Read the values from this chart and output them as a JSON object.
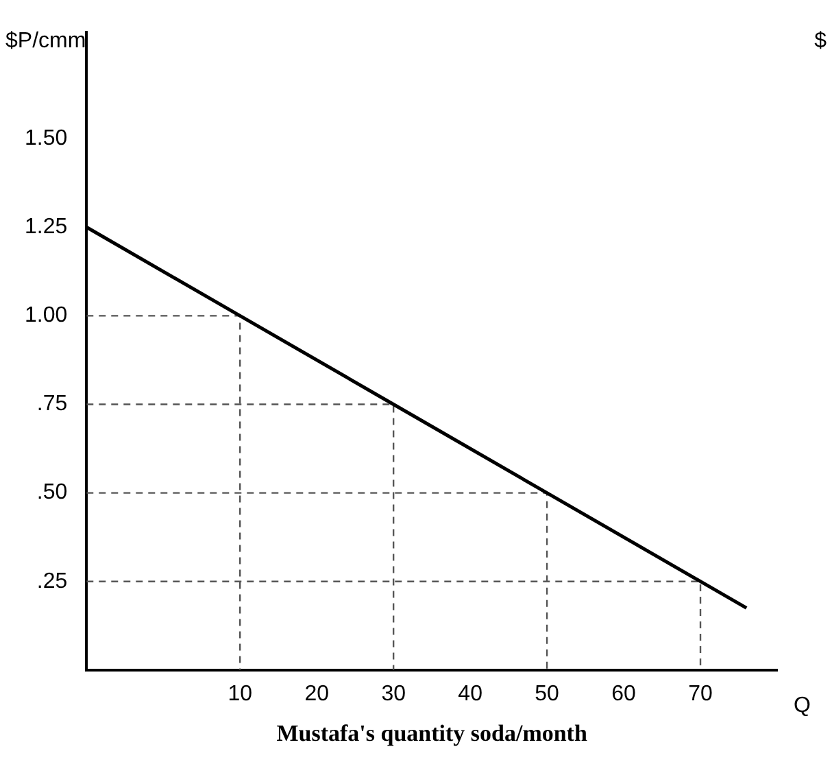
{
  "chart_data": {
    "type": "line",
    "xlabel": "Mustafa's quantity soda/month",
    "ylabel": "$P/cmm",
    "annotations": [
      "Q",
      "$"
    ],
    "xlim": [
      -10,
      80
    ],
    "xticks": [
      10,
      20,
      30,
      40,
      50,
      60,
      70
    ],
    "ylim": [
      0,
      1.8
    ],
    "yticks": [
      {
        "value": 0.25,
        "label": ".25"
      },
      {
        "value": 0.5,
        "label": ".50"
      },
      {
        "value": 0.75,
        "label": ".75"
      },
      {
        "value": 1,
        "label": "1.00"
      },
      {
        "value": 1.25,
        "label": "1.25"
      },
      {
        "value": 1.5,
        "label": "1.50"
      }
    ],
    "grid": false,
    "legend": false,
    "marker": "none",
    "series": [
      {
        "color": "#000000",
        "line_style": "solid",
        "x": [
          -10,
          10,
          30,
          50,
          70,
          76
        ],
        "values": [
          1.25,
          1.0,
          0.75,
          0.5,
          0.25,
          0.175
        ]
      },
      {
        "color": "#555555",
        "line_style": "dashed",
        "x": [
          -10,
          10,
          10
        ],
        "values": [
          1.0,
          1.0,
          0
        ]
      },
      {
        "color": "#555555",
        "line_style": "dashed",
        "x": [
          -10,
          30,
          30
        ],
        "values": [
          0.75,
          0.75,
          0
        ]
      },
      {
        "color": "#555555",
        "line_style": "dashed",
        "x": [
          -10,
          50,
          50
        ],
        "values": [
          0.5,
          0.5,
          0
        ]
      },
      {
        "color": "#555555",
        "line_style": "dashed",
        "x": [
          -10,
          70,
          70
        ],
        "values": [
          0.25,
          0.25,
          0
        ]
      }
    ]
  }
}
